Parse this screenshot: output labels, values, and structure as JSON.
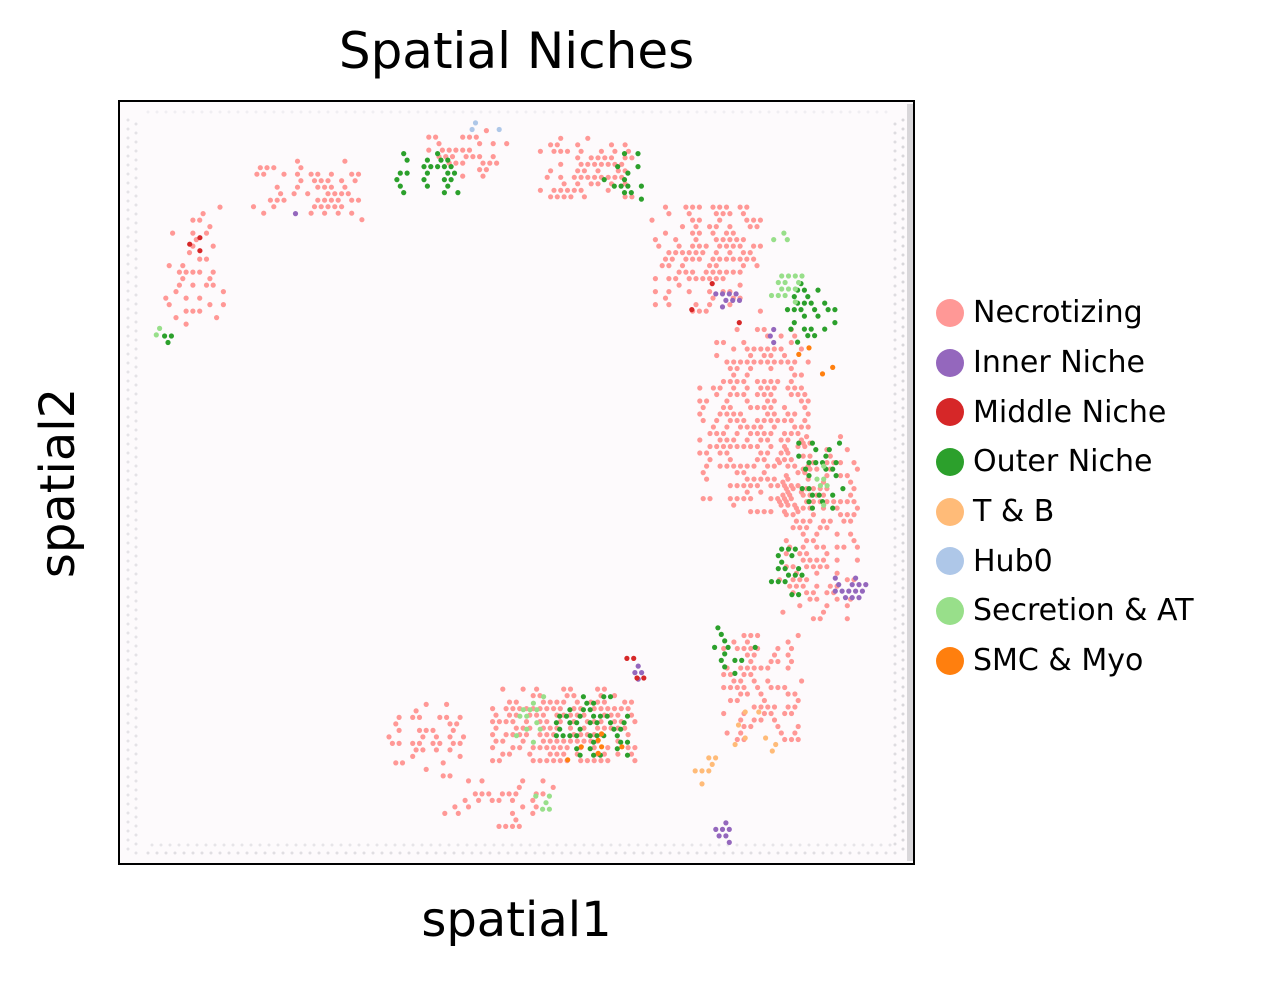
{
  "chart_data": {
    "type": "scatter",
    "title": "Spatial Niches",
    "xlabel": "spatial1",
    "ylabel": "spatial2",
    "xlim": [
      0,
      100
    ],
    "ylim": [
      0,
      100
    ],
    "y_inverted": true,
    "legend_position": "right",
    "background": "tissue-image",
    "series": [
      {
        "name": "Necrotizing",
        "color": "#ff9896"
      },
      {
        "name": "Inner Niche",
        "color": "#9467bd"
      },
      {
        "name": "Middle Niche",
        "color": "#d62728"
      },
      {
        "name": "Outer Niche",
        "color": "#2ca02c"
      },
      {
        "name": "T & B",
        "color": "#ffbb78"
      },
      {
        "name": "Hub0",
        "color": "#aec7e8"
      },
      {
        "name": "Secretion & AT",
        "color": "#98df8a"
      },
      {
        "name": "SMC & Myo",
        "color": "#ff7f0e"
      }
    ],
    "regions": [
      {
        "series": "Necrotizing",
        "shape": "rect",
        "cx": 24,
        "cy": 12,
        "rx": 7,
        "ry": 4,
        "density": 0.55
      },
      {
        "series": "Necrotizing",
        "shape": "rect",
        "cx": 44,
        "cy": 7,
        "rx": 5,
        "ry": 3,
        "density": 0.5
      },
      {
        "series": "Necrotizing",
        "shape": "rect",
        "cx": 59,
        "cy": 9,
        "rx": 6,
        "ry": 4,
        "density": 0.65
      },
      {
        "series": "Necrotizing",
        "shape": "rect",
        "cx": 74,
        "cy": 21,
        "rx": 7,
        "ry": 7,
        "density": 0.7
      },
      {
        "series": "Necrotizing",
        "shape": "rect",
        "cx": 80,
        "cy": 42,
        "rx": 7,
        "ry": 12,
        "density": 0.7
      },
      {
        "series": "Necrotizing",
        "shape": "rect",
        "cx": 88,
        "cy": 56,
        "rx": 5,
        "ry": 12,
        "density": 0.6
      },
      {
        "series": "Necrotizing",
        "shape": "rect",
        "cx": 81,
        "cy": 77,
        "rx": 5,
        "ry": 7,
        "density": 0.55
      },
      {
        "series": "Necrotizing",
        "shape": "rect",
        "cx": 56,
        "cy": 82,
        "rx": 9,
        "ry": 5,
        "density": 0.85
      },
      {
        "series": "Necrotizing",
        "shape": "rect",
        "cx": 39,
        "cy": 84,
        "rx": 5,
        "ry": 5,
        "density": 0.4
      },
      {
        "series": "Necrotizing",
        "shape": "rect",
        "cx": 48,
        "cy": 92,
        "rx": 7,
        "ry": 3,
        "density": 0.4
      },
      {
        "series": "Necrotizing",
        "shape": "rect",
        "cx": 10,
        "cy": 22,
        "rx": 4,
        "ry": 8,
        "density": 0.35
      },
      {
        "series": "Outer Niche",
        "shape": "rect",
        "cx": 39,
        "cy": 10,
        "rx": 4,
        "ry": 3,
        "density": 0.3
      },
      {
        "series": "Outer Niche",
        "shape": "rect",
        "cx": 64,
        "cy": 10,
        "rx": 3,
        "ry": 3,
        "density": 0.3
      },
      {
        "series": "Outer Niche",
        "shape": "rect",
        "cx": 87,
        "cy": 28,
        "rx": 3,
        "ry": 4,
        "density": 0.5
      },
      {
        "series": "Outer Niche",
        "shape": "rect",
        "cx": 88,
        "cy": 49,
        "rx": 3,
        "ry": 5,
        "density": 0.45
      },
      {
        "series": "Outer Niche",
        "shape": "rect",
        "cx": 84,
        "cy": 61,
        "rx": 2,
        "ry": 4,
        "density": 0.35
      },
      {
        "series": "Outer Niche",
        "shape": "rect",
        "cx": 60,
        "cy": 82,
        "rx": 5,
        "ry": 4,
        "density": 0.6
      },
      {
        "series": "Outer Niche",
        "shape": "rect",
        "cx": 77,
        "cy": 72,
        "rx": 3,
        "ry": 3,
        "density": 0.35
      },
      {
        "series": "Outer Niche",
        "shape": "rect",
        "cx": 6,
        "cy": 31,
        "rx": 1,
        "ry": 1,
        "density": 0.6
      },
      {
        "series": "Inner Niche",
        "shape": "rect",
        "cx": 76.5,
        "cy": 26,
        "rx": 1.5,
        "ry": 1.5,
        "density": 0.85
      },
      {
        "series": "Inner Niche",
        "shape": "rect",
        "cx": 92,
        "cy": 64,
        "rx": 2,
        "ry": 1.5,
        "density": 0.85
      },
      {
        "series": "Inner Niche",
        "shape": "rect",
        "cx": 22,
        "cy": 15,
        "rx": 1,
        "ry": 1,
        "density": 0.8
      },
      {
        "series": "Inner Niche",
        "shape": "rect",
        "cx": 65,
        "cy": 75,
        "rx": 1,
        "ry": 1,
        "density": 0.8
      },
      {
        "series": "Inner Niche",
        "shape": "rect",
        "cx": 76,
        "cy": 96,
        "rx": 1,
        "ry": 1.5,
        "density": 0.8
      },
      {
        "series": "Inner Niche",
        "shape": "rect",
        "cx": 82,
        "cy": 31,
        "rx": 1,
        "ry": 1,
        "density": 0.7
      },
      {
        "series": "Secretion & AT",
        "shape": "rect",
        "cx": 84,
        "cy": 25,
        "rx": 2,
        "ry": 2,
        "density": 0.5
      },
      {
        "series": "Secretion & AT",
        "shape": "rect",
        "cx": 83,
        "cy": 18,
        "rx": 2,
        "ry": 0.6,
        "density": 0.6
      },
      {
        "series": "Secretion & AT",
        "shape": "rect",
        "cx": 52,
        "cy": 81,
        "rx": 2,
        "ry": 3,
        "density": 0.4
      },
      {
        "series": "Secretion & AT",
        "shape": "rect",
        "cx": 54,
        "cy": 92,
        "rx": 2,
        "ry": 1,
        "density": 0.5
      },
      {
        "series": "Secretion & AT",
        "shape": "rect",
        "cx": 88,
        "cy": 50,
        "rx": 2,
        "ry": 3,
        "density": 0.25
      },
      {
        "series": "Secretion & AT",
        "shape": "rect",
        "cx": 6,
        "cy": 30,
        "rx": 1.2,
        "ry": 1,
        "density": 0.5
      },
      {
        "series": "T & B",
        "shape": "rect",
        "cx": 74,
        "cy": 88,
        "rx": 2,
        "ry": 2,
        "density": 0.55
      },
      {
        "series": "T & B",
        "shape": "rect",
        "cx": 80,
        "cy": 83,
        "rx": 3,
        "ry": 3,
        "density": 0.15
      },
      {
        "series": "Middle Niche",
        "shape": "rect",
        "cx": 75,
        "cy": 27,
        "rx": 3,
        "ry": 3,
        "density": 0.12
      },
      {
        "series": "Middle Niche",
        "shape": "rect",
        "cx": 66,
        "cy": 76,
        "rx": 3,
        "ry": 3,
        "density": 0.12
      },
      {
        "series": "Middle Niche",
        "shape": "rect",
        "cx": 10,
        "cy": 19,
        "rx": 1,
        "ry": 1,
        "density": 0.4
      },
      {
        "series": "SMC & Myo",
        "shape": "rect",
        "cx": 88,
        "cy": 33,
        "rx": 3,
        "ry": 4,
        "density": 0.12
      },
      {
        "series": "SMC & Myo",
        "shape": "rect",
        "cx": 60,
        "cy": 85,
        "rx": 4,
        "ry": 3,
        "density": 0.08
      },
      {
        "series": "Hub0",
        "shape": "rect",
        "cx": 46,
        "cy": 4,
        "rx": 2,
        "ry": 1,
        "density": 0.3
      }
    ]
  }
}
